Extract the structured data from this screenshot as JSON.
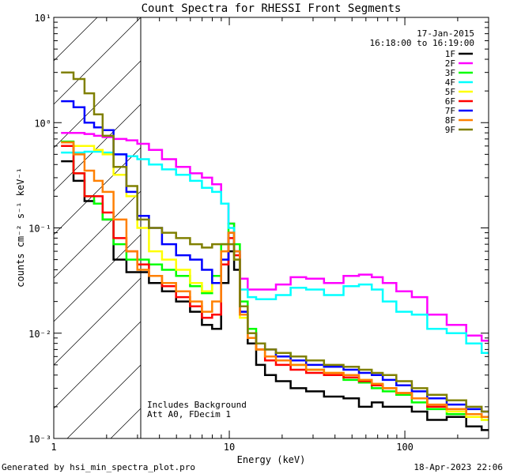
{
  "chart_data": {
    "type": "line",
    "title": "Count Spectra for RHESSI Front Segments",
    "xlabel": "Energy (keV)",
    "ylabel": "counts cm⁻² s⁻¹ keV⁻¹",
    "xscale": "log",
    "yscale": "log",
    "xlim": [
      1,
      300
    ],
    "ylim": [
      0.001,
      10
    ],
    "x_tick_labels": [
      "1",
      "10",
      "100"
    ],
    "y_tick_labels": [
      "10⁻³",
      "10⁻²",
      "10⁻¹",
      "10⁰",
      "10¹"
    ],
    "shaded_region": {
      "x_from": 1,
      "x_to": 3,
      "pattern": "diagonal hatch"
    },
    "date": "17-Jan-2015",
    "time_range": "16:18:00 to 16:19:00",
    "annotations": [
      "Includes Background",
      "Att A0, FDecim 1"
    ],
    "x": [
      1.2,
      1.4,
      1.6,
      1.8,
      2.0,
      2.4,
      2.8,
      3.2,
      3.8,
      4.5,
      5.5,
      6.5,
      7.5,
      8.5,
      9.5,
      10.3,
      11.0,
      12.0,
      13.5,
      15.0,
      17.0,
      20.0,
      25.0,
      30.0,
      40.0,
      50.0,
      60.0,
      70.0,
      80.0,
      100.0,
      120.0,
      150.0,
      200.0,
      250.0,
      300.0
    ],
    "series": [
      {
        "name": "1F",
        "color": "#000000",
        "values": [
          0.43,
          0.28,
          0.18,
          0.17,
          0.12,
          0.05,
          0.038,
          0.038,
          0.03,
          0.025,
          0.02,
          0.016,
          0.012,
          0.011,
          0.03,
          0.06,
          0.04,
          0.015,
          0.008,
          0.005,
          0.004,
          0.0035,
          0.003,
          0.0028,
          0.0025,
          0.0024,
          0.002,
          0.0022,
          0.002,
          0.002,
          0.0018,
          0.0015,
          0.0016,
          0.0013,
          0.0012
        ]
      },
      {
        "name": "2F",
        "color": "#ff00ff",
        "values": [
          0.8,
          0.8,
          0.78,
          0.75,
          0.73,
          0.7,
          0.68,
          0.63,
          0.55,
          0.45,
          0.38,
          0.33,
          0.3,
          0.26,
          0.17,
          0.11,
          0.06,
          0.033,
          0.026,
          0.026,
          0.026,
          0.029,
          0.034,
          0.033,
          0.03,
          0.035,
          0.036,
          0.034,
          0.03,
          0.025,
          0.022,
          0.015,
          0.012,
          0.0095,
          0.0085
        ]
      },
      {
        "name": "3F",
        "color": "#00ff00",
        "values": [
          0.66,
          0.33,
          0.2,
          0.17,
          0.12,
          0.07,
          0.05,
          0.05,
          0.045,
          0.04,
          0.035,
          0.028,
          0.024,
          0.035,
          0.07,
          0.11,
          0.07,
          0.02,
          0.011,
          0.007,
          0.006,
          0.0065,
          0.005,
          0.0045,
          0.004,
          0.0036,
          0.0034,
          0.003,
          0.0028,
          0.0026,
          0.0022,
          0.0019,
          0.0017,
          0.0016,
          0.0015
        ]
      },
      {
        "name": "4F",
        "color": "#00ffff",
        "values": [
          0.52,
          0.52,
          0.53,
          0.53,
          0.52,
          0.5,
          0.48,
          0.45,
          0.4,
          0.36,
          0.32,
          0.28,
          0.24,
          0.22,
          0.17,
          0.1,
          0.05,
          0.026,
          0.022,
          0.021,
          0.021,
          0.023,
          0.027,
          0.026,
          0.023,
          0.028,
          0.029,
          0.026,
          0.02,
          0.016,
          0.015,
          0.011,
          0.01,
          0.008,
          0.0065
        ]
      },
      {
        "name": "5F",
        "color": "#ffff00",
        "values": [
          0.6,
          0.6,
          0.6,
          0.55,
          0.5,
          0.32,
          0.2,
          0.1,
          0.06,
          0.05,
          0.04,
          0.03,
          0.025,
          0.03,
          0.06,
          0.09,
          0.05,
          0.014,
          0.009,
          0.007,
          0.006,
          0.0055,
          0.005,
          0.0045,
          0.0042,
          0.0038,
          0.0036,
          0.0033,
          0.003,
          0.0027,
          0.0024,
          0.002,
          0.0018,
          0.0016,
          0.0015
        ]
      },
      {
        "name": "6F",
        "color": "#ff0000",
        "values": [
          0.6,
          0.33,
          0.2,
          0.2,
          0.14,
          0.08,
          0.06,
          0.045,
          0.035,
          0.028,
          0.022,
          0.018,
          0.014,
          0.015,
          0.045,
          0.08,
          0.055,
          0.016,
          0.009,
          0.007,
          0.0055,
          0.005,
          0.0045,
          0.0042,
          0.004,
          0.0038,
          0.0035,
          0.0032,
          0.003,
          0.0027,
          0.0024,
          0.002,
          0.0019,
          0.0017,
          0.0016
        ]
      },
      {
        "name": "7F",
        "color": "#0000ff",
        "values": [
          1.6,
          1.4,
          1.0,
          0.9,
          0.85,
          0.5,
          0.22,
          0.13,
          0.1,
          0.07,
          0.055,
          0.05,
          0.04,
          0.03,
          0.05,
          0.09,
          0.06,
          0.016,
          0.01,
          0.008,
          0.007,
          0.006,
          0.0055,
          0.005,
          0.0048,
          0.0045,
          0.0042,
          0.004,
          0.0036,
          0.0032,
          0.0028,
          0.0024,
          0.0021,
          0.0019,
          0.0018
        ]
      },
      {
        "name": "8F",
        "color": "#ff8000",
        "values": [
          0.65,
          0.5,
          0.35,
          0.28,
          0.22,
          0.12,
          0.06,
          0.04,
          0.035,
          0.03,
          0.025,
          0.02,
          0.016,
          0.02,
          0.06,
          0.09,
          0.06,
          0.015,
          0.009,
          0.007,
          0.006,
          0.0055,
          0.005,
          0.0045,
          0.0042,
          0.004,
          0.0036,
          0.0033,
          0.003,
          0.0027,
          0.0024,
          0.0021,
          0.0019,
          0.0017,
          0.0016
        ]
      },
      {
        "name": "9F",
        "color": "#808000",
        "values": [
          3.0,
          2.6,
          1.9,
          1.2,
          0.75,
          0.38,
          0.25,
          0.12,
          0.1,
          0.09,
          0.08,
          0.07,
          0.065,
          0.07,
          0.07,
          0.07,
          0.05,
          0.018,
          0.01,
          0.008,
          0.007,
          0.0065,
          0.006,
          0.0055,
          0.005,
          0.0048,
          0.0045,
          0.0042,
          0.004,
          0.0035,
          0.003,
          0.0026,
          0.0023,
          0.002,
          0.0018
        ]
      }
    ]
  },
  "footer": {
    "generator": "Generated by hsi_min_spectra_plot.pro",
    "timestamp": "18-Apr-2023 22:06"
  }
}
